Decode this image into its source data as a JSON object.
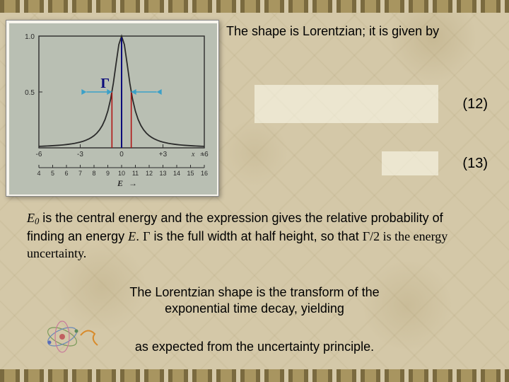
{
  "text": {
    "line1": "The shape is Lorentzian; it is given by",
    "eq12_num": "(12)",
    "eq13_num": "(13)",
    "para_prefix_italic_E": "E",
    "para_sub0": "0",
    "para_body1": " is the central energy and the expression gives the relative probability of finding an energy ",
    "para_italic_E2": "E",
    "para_body2": ". ",
    "para_gamma": "Γ",
    "para_body3": " is the full width at half height, so that ",
    "para_gamma_half": "Γ/2 is the energy uncertainty.",
    "transform_l1": "The Lorentzian shape is the transform of the",
    "transform_l2": "exponential time decay, yielding",
    "expected": "as expected from the uncertainty principle."
  },
  "graph": {
    "background": "#b9bfb3",
    "frame_stroke": "#2b2b2b",
    "tick_color": "#2b2b2b",
    "curve_color": "#2b2b2b",
    "gamma_label": "Γ",
    "gamma_color": "#0b0b7a",
    "red_line_color": "#b01515",
    "arrow_color": "#3aa0c8",
    "x_ticks_top": [
      "-6",
      "-3",
      "0",
      "+3",
      "+6"
    ],
    "y_ticks": [
      "0.5",
      "1.0"
    ],
    "x_ticks_bottom_small": [
      "4",
      "5",
      "6",
      "7",
      "8",
      "9",
      "10",
      "11",
      "12",
      "13",
      "14",
      "15",
      "16"
    ],
    "x_label_bottom_italic": "E",
    "x_label_bottom_arrow": "→",
    "x_label_top_italic": "x",
    "x_label_top_arrow": "→",
    "lorentzian": {
      "gamma": 1.4,
      "x_min": -6,
      "x_max": 6,
      "samples": 61
    }
  },
  "colors": {
    "slide_bg": "#d4c8a8",
    "text": "#000000",
    "highlight_bg": "rgba(255,255,240,0.55)"
  }
}
